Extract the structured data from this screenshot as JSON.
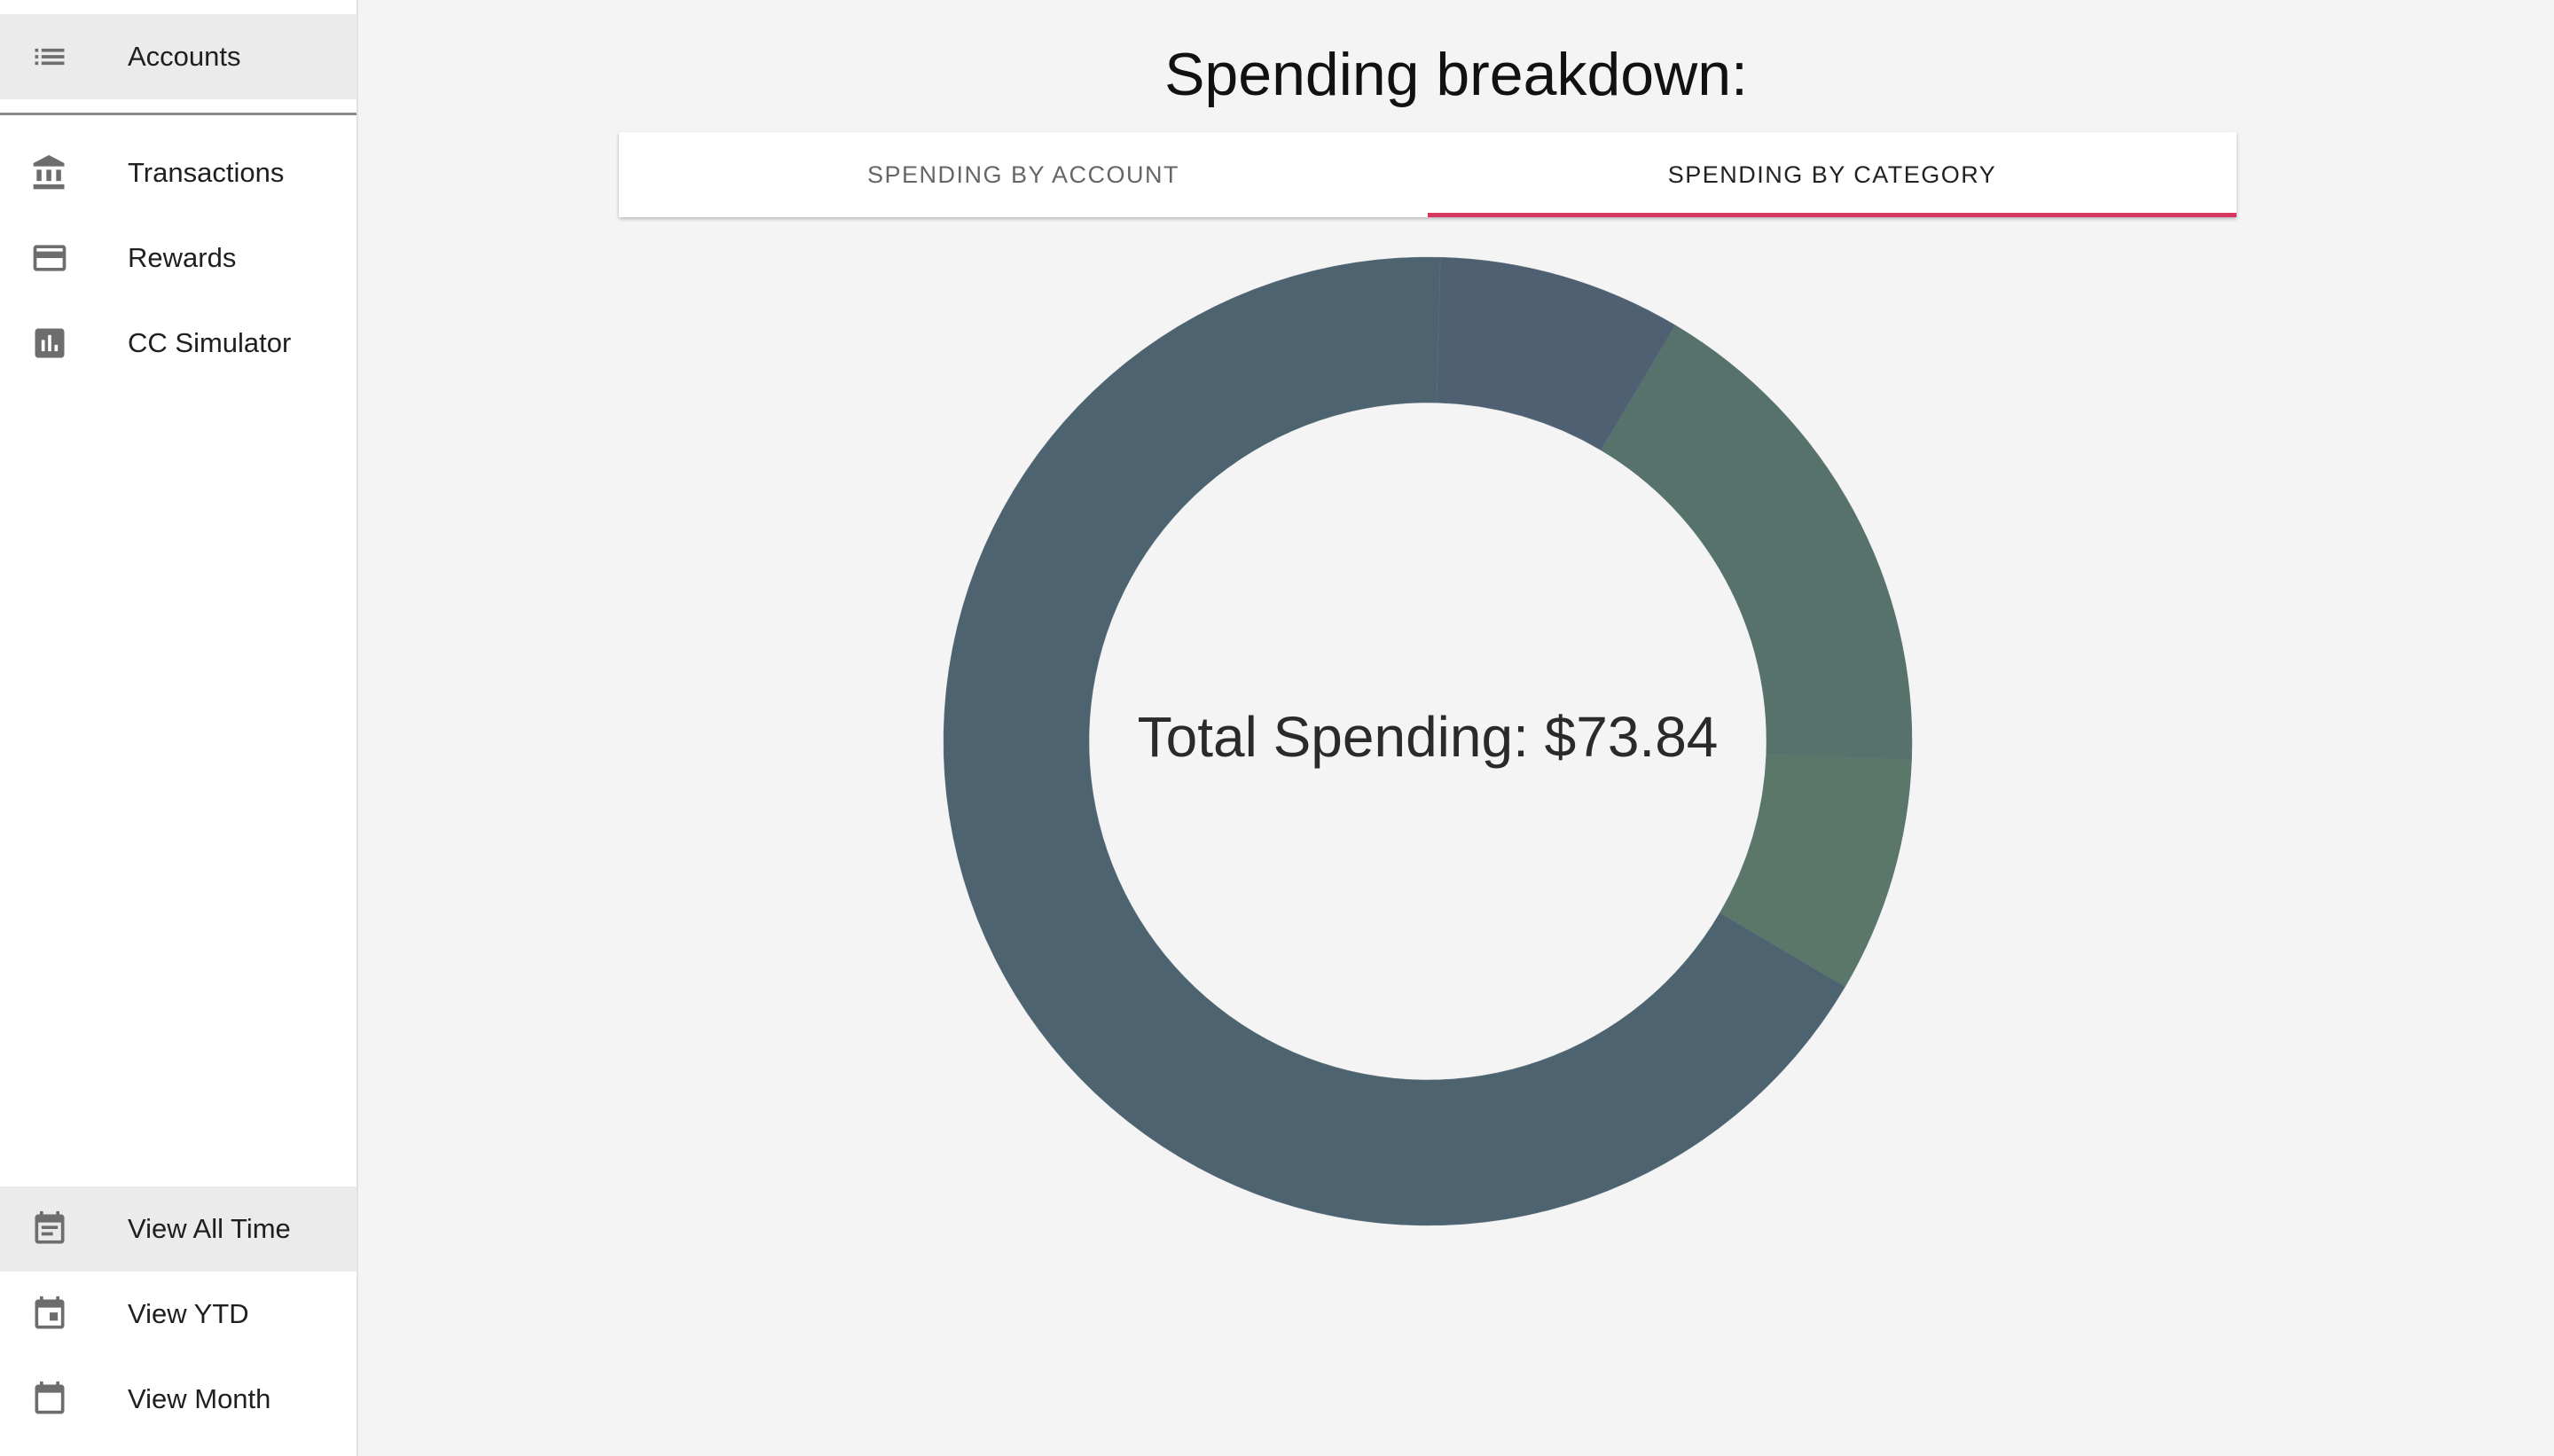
{
  "sidebar": {
    "items": [
      {
        "label": "Accounts",
        "icon": "list-icon",
        "active": true
      },
      {
        "label": "Transactions",
        "icon": "bank-icon",
        "active": false
      },
      {
        "label": "Rewards",
        "icon": "credit-card-icon",
        "active": false
      },
      {
        "label": "CC Simulator",
        "icon": "bar-chart-icon",
        "active": false
      }
    ],
    "time_filters": [
      {
        "label": "View All Time",
        "icon": "calendar-event-icon",
        "active": true
      },
      {
        "label": "View YTD",
        "icon": "calendar-today-icon",
        "active": false
      },
      {
        "label": "View Month",
        "icon": "calendar-icon",
        "active": false
      }
    ]
  },
  "main": {
    "title": "Spending breakdown:",
    "tabs": [
      {
        "label": "Spending by account",
        "selected": false
      },
      {
        "label": "Spending by category",
        "selected": true
      }
    ],
    "center_label": "Total Spending: $73.84"
  },
  "colors": {
    "accent": "#d6375f",
    "slate": "#4d6370",
    "green": "#57726a"
  },
  "chart_data": {
    "type": "pie",
    "variant": "donut",
    "total": 73.84,
    "slices": [
      {
        "value": 6.0,
        "color": "#4e6072"
      },
      {
        "value": 12.6,
        "color": "#57726a"
      },
      {
        "value": 5.8,
        "color": "#5a7769"
      },
      {
        "value": 49.44,
        "color": "#4d6370"
      }
    ]
  }
}
